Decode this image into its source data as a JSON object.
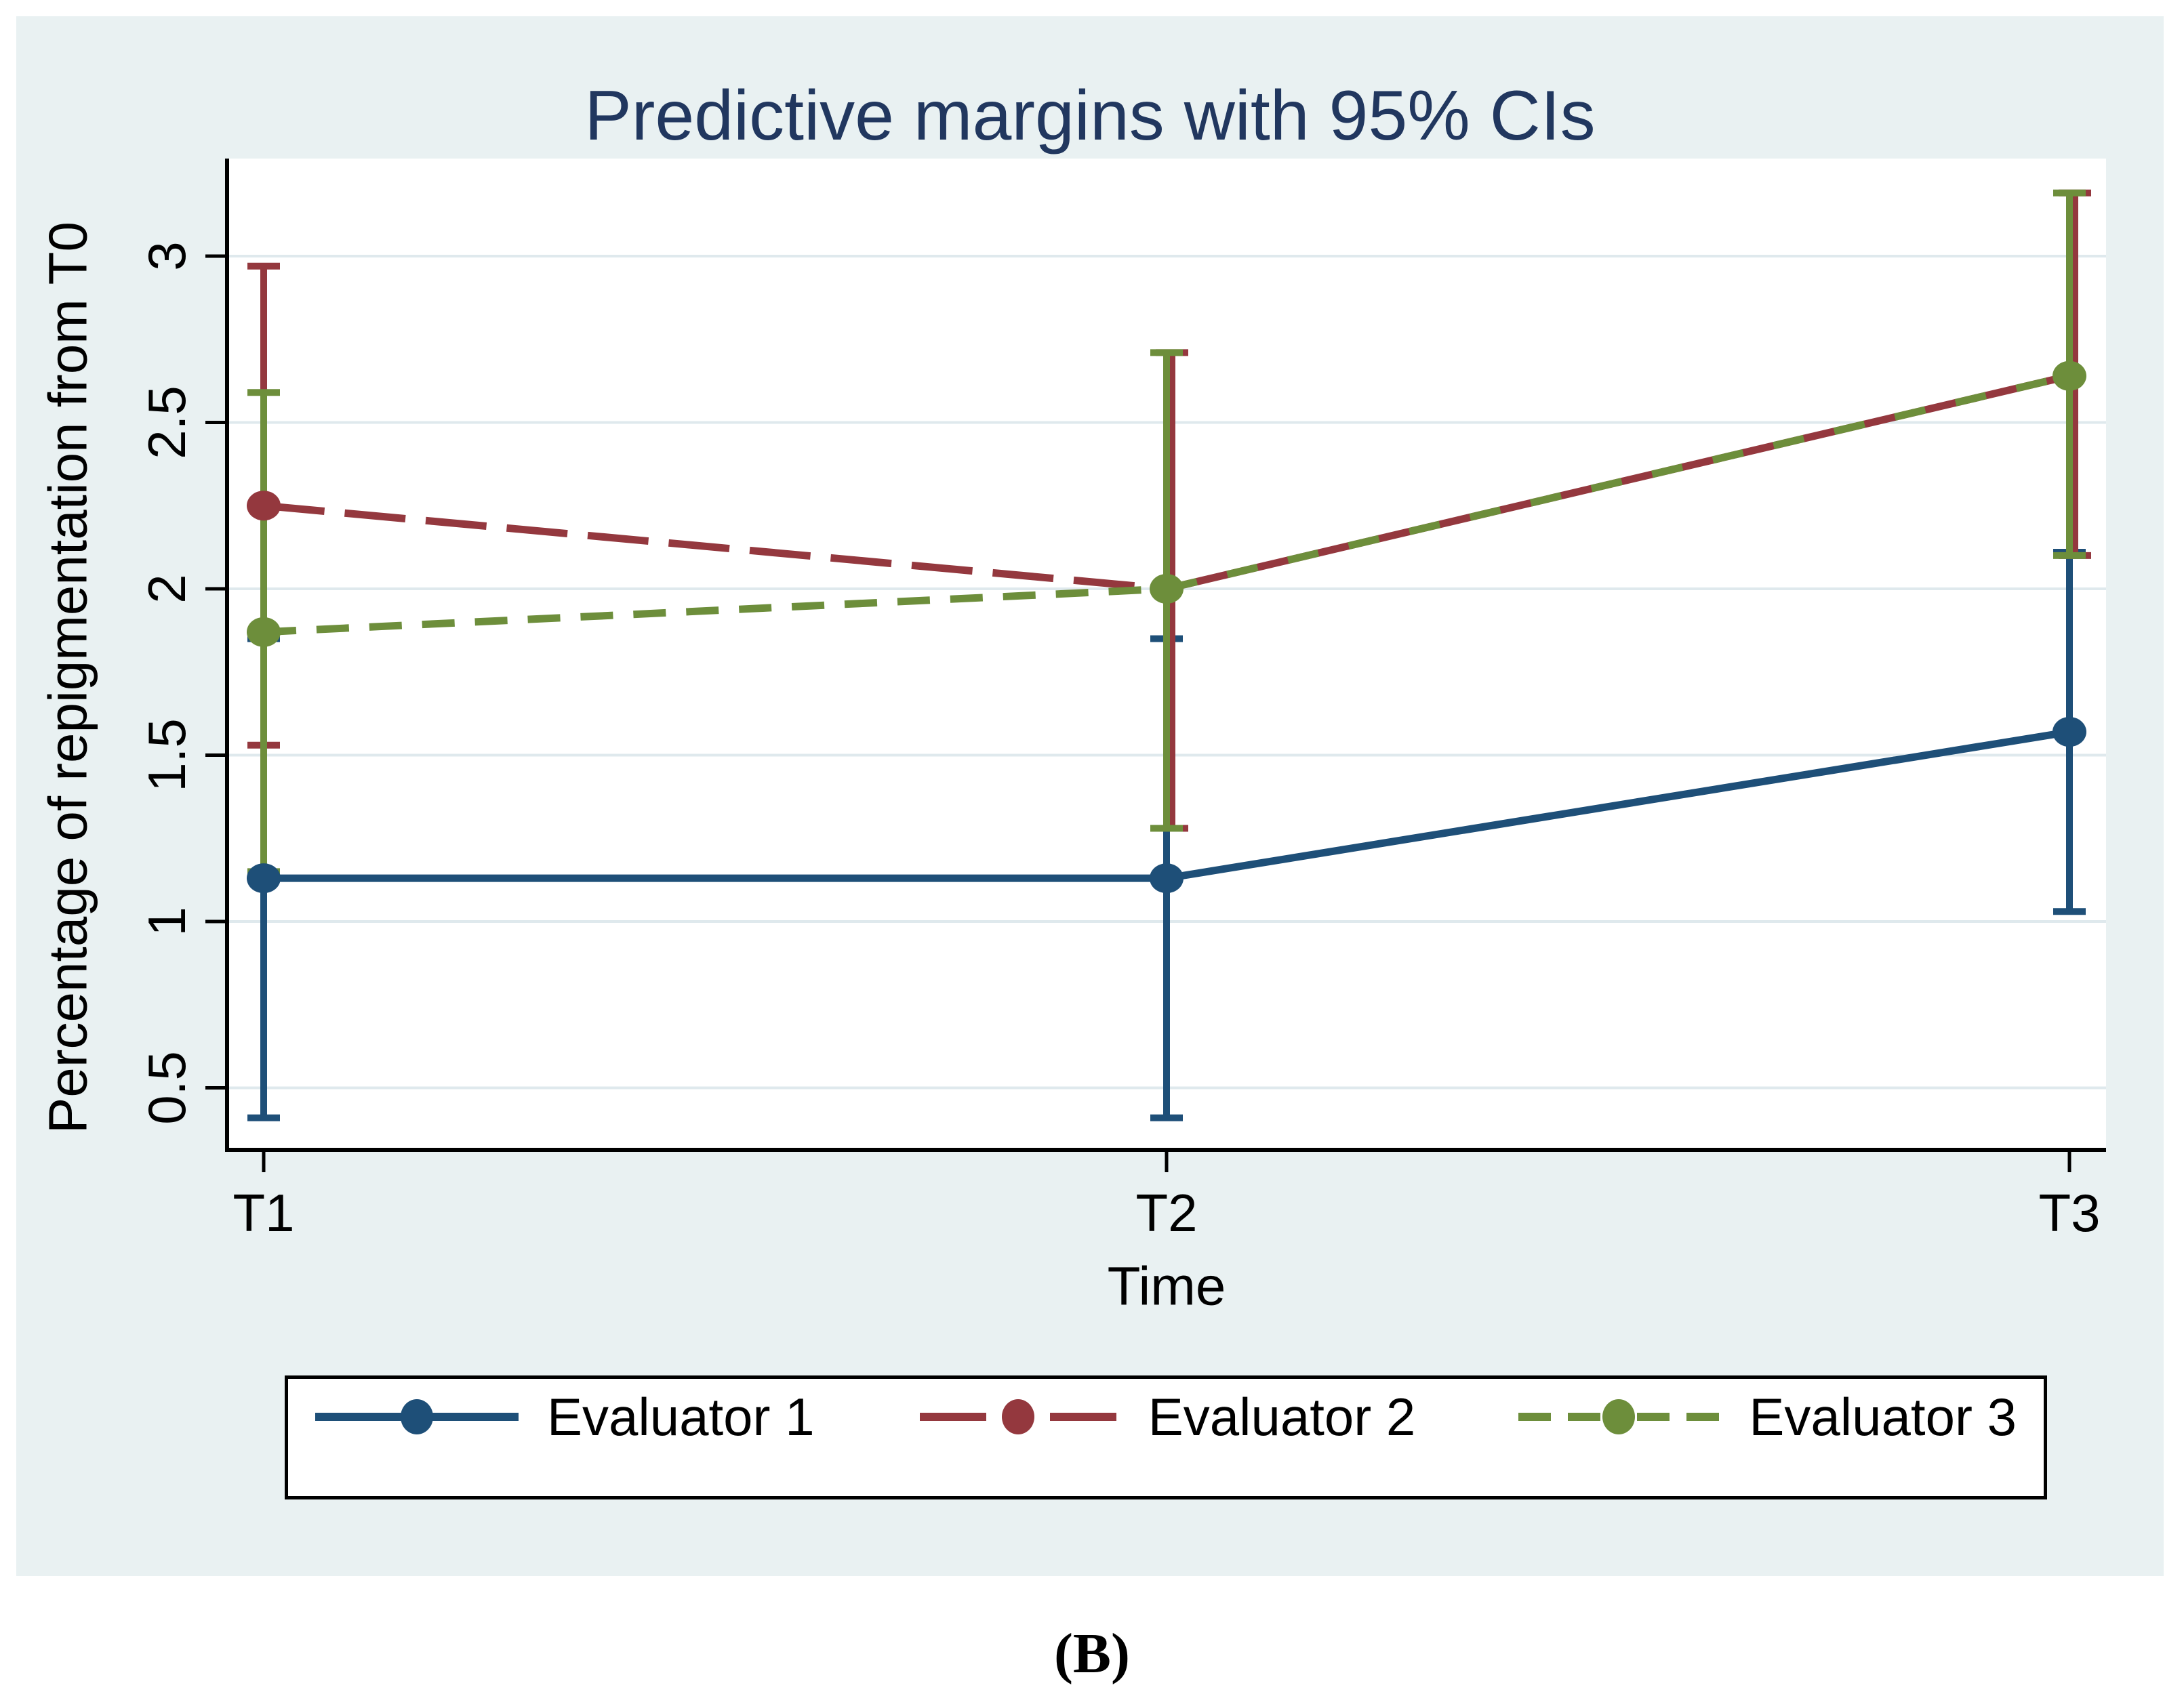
{
  "caption": "(B)",
  "colors": {
    "page_background": "#ffffff",
    "graph_background": "#e9f1f2",
    "plot_background": "#ffffff",
    "gridline": "#dfe9ed",
    "axis": "#000000",
    "title": "#21375f",
    "evaluator1": "#1e4f78",
    "evaluator2": "#94383e",
    "evaluator3": "#6d8e3b"
  },
  "chart_data": {
    "type": "line",
    "title": "Predictive margins with 95% CIs",
    "xlabel": "Time",
    "ylabel": "Percentage of repigmentation from T0",
    "categories": [
      "T1",
      "T2",
      "T3"
    ],
    "y_ticks": [
      0.5,
      1,
      1.5,
      2,
      2.5,
      3
    ],
    "y_tick_labels": [
      "0.5",
      "1",
      "1.5",
      "2",
      "2.5",
      "3"
    ],
    "ylim": [
      0.31,
      3.29
    ],
    "grid": "horizontal",
    "legend_position": "bottom",
    "series": [
      {
        "name": "Evaluator 1",
        "color": "#1e4f78",
        "line_style": "solid",
        "marker": "circle",
        "values": [
          1.13,
          1.13,
          1.57
        ],
        "ci_low": [
          0.41,
          0.41,
          1.03
        ],
        "ci_high": [
          1.85,
          1.85,
          2.11
        ]
      },
      {
        "name": "Evaluator 2",
        "color": "#94383e",
        "line_style": "long-dash",
        "marker": "circle",
        "values": [
          2.25,
          2.0,
          2.64
        ],
        "ci_low": [
          1.53,
          1.28,
          2.1
        ],
        "ci_high": [
          2.97,
          2.71,
          3.19
        ]
      },
      {
        "name": "Evaluator 3",
        "color": "#6d8e3b",
        "line_style": "short-dash",
        "marker": "circle",
        "values": [
          1.87,
          2.0,
          2.64
        ],
        "ci_low": [
          1.15,
          1.28,
          2.1
        ],
        "ci_high": [
          2.59,
          2.71,
          3.19
        ]
      }
    ]
  }
}
